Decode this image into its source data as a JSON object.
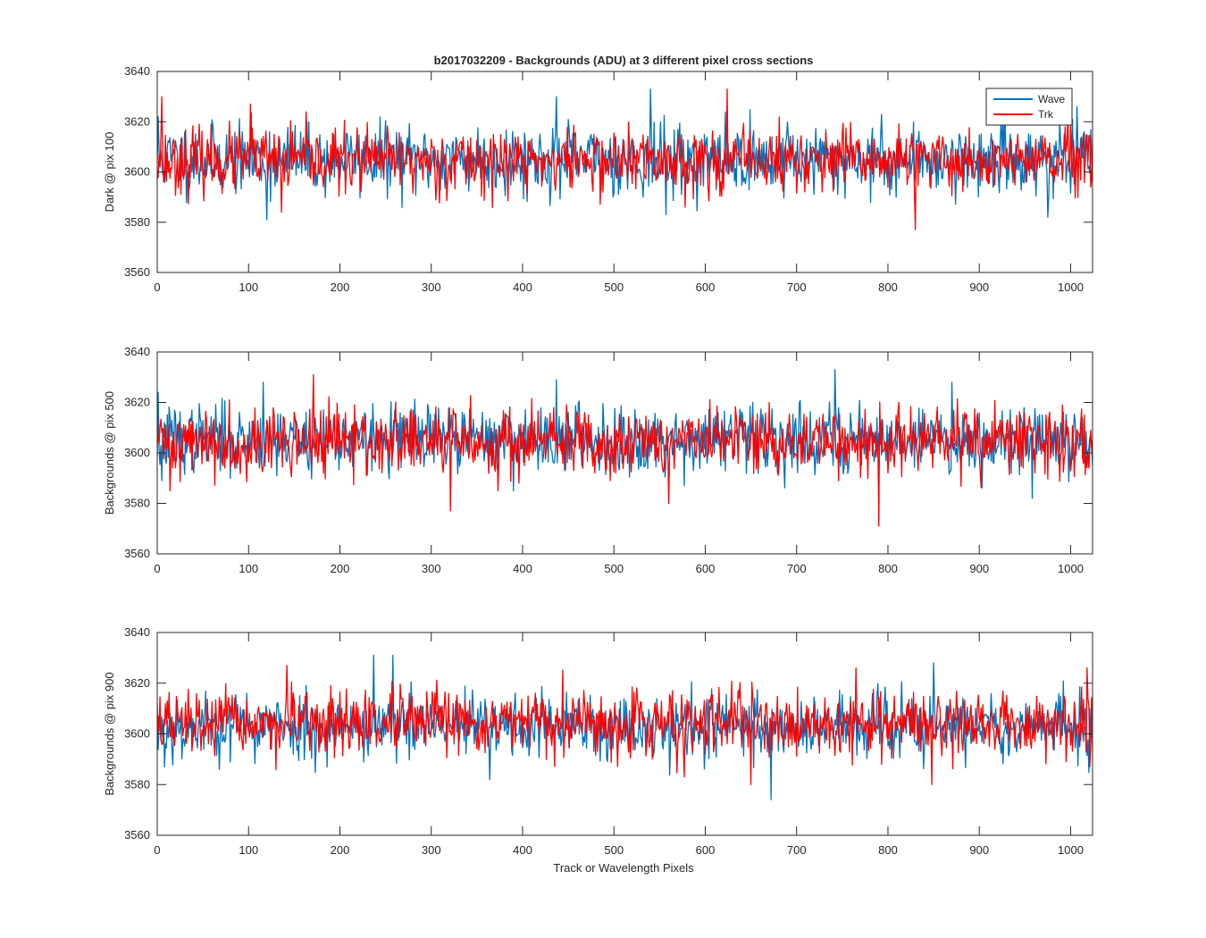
{
  "figure": {
    "title": "b2017032209 - Backgrounds (ADU) at 3 different pixel cross sections",
    "xlabel": "Track or Wavelength Pixels"
  },
  "colors": {
    "Wave": "#0072bd",
    "Trk": "#ff0000",
    "axis": "#262626"
  },
  "chart_data": [
    {
      "type": "line",
      "ylabel": "Dark @ pix 100",
      "xlim": [
        0,
        1024
      ],
      "ylim": [
        3560,
        3640
      ],
      "xticks": [
        0,
        100,
        200,
        300,
        400,
        500,
        600,
        700,
        800,
        900,
        1000
      ],
      "yticks": [
        3560,
        3580,
        3600,
        3620,
        3640
      ],
      "x": "integers 0..1024 (approx. one sample per pixel)",
      "legend": {
        "position": "top-right",
        "entries": [
          "Wave",
          "Trk"
        ]
      },
      "series": [
        {
          "name": "Wave",
          "color": "#0072bd",
          "mean": 3605,
          "std": 6.8,
          "seed": 11,
          "spikes": [
            [
              1,
              3622
            ],
            [
              120,
              3581
            ],
            [
              437,
              3630
            ],
            [
              540,
              3633
            ],
            [
              557,
              3583
            ],
            [
              690,
              3620
            ],
            [
              975,
              3582
            ]
          ]
        },
        {
          "name": "Trk",
          "color": "#ff0000",
          "mean": 3604.5,
          "std": 6.3,
          "seed": 23,
          "spikes": [
            [
              5,
              3630
            ],
            [
              7,
              3596
            ],
            [
              102,
              3627
            ],
            [
              136,
              3584
            ],
            [
              624,
              3633
            ],
            [
              830,
              3577
            ],
            [
              1022,
              3594
            ]
          ]
        }
      ]
    },
    {
      "type": "line",
      "ylabel": "Backgrounds @ pix 500",
      "xlim": [
        0,
        1024
      ],
      "ylim": [
        3560,
        3640
      ],
      "xticks": [
        0,
        100,
        200,
        300,
        400,
        500,
        600,
        700,
        800,
        900,
        1000
      ],
      "yticks": [
        3560,
        3580,
        3600,
        3620,
        3640
      ],
      "x": "integers 0..1024 (approx. one sample per pixel)",
      "series": [
        {
          "name": "Wave",
          "color": "#0072bd",
          "mean": 3605.5,
          "std": 6.6,
          "seed": 37,
          "spikes": [
            [
              1,
              3624
            ],
            [
              5,
              3589
            ],
            [
              116,
              3628
            ],
            [
              437,
              3629
            ],
            [
              742,
              3633
            ],
            [
              870,
              3628
            ],
            [
              958,
              3582
            ]
          ]
        },
        {
          "name": "Trk",
          "color": "#ff0000",
          "mean": 3604.5,
          "std": 6.8,
          "seed": 41,
          "spikes": [
            [
              14,
              3585
            ],
            [
              171,
              3631
            ],
            [
              321,
              3577
            ],
            [
              560,
              3580
            ],
            [
              790,
              3571
            ],
            [
              1020,
              3594
            ]
          ]
        }
      ]
    },
    {
      "type": "line",
      "ylabel": "Backgrounds @ pix 900",
      "xlim": [
        0,
        1024
      ],
      "ylim": [
        3560,
        3640
      ],
      "xticks": [
        0,
        100,
        200,
        300,
        400,
        500,
        600,
        700,
        800,
        900,
        1000
      ],
      "yticks": [
        3560,
        3580,
        3600,
        3620,
        3640
      ],
      "x": "integers 0..1024 (approx. one sample per pixel)",
      "series": [
        {
          "name": "Wave",
          "color": "#0072bd",
          "mean": 3603,
          "std": 6.4,
          "seed": 53,
          "spikes": [
            [
              8,
              3587
            ],
            [
              237,
              3631
            ],
            [
              258,
              3631
            ],
            [
              364,
              3582
            ],
            [
              672,
              3574
            ],
            [
              850,
              3628
            ],
            [
              1022,
              3596
            ]
          ]
        },
        {
          "name": "Trk",
          "color": "#ff0000",
          "mean": 3604,
          "std": 6.2,
          "seed": 67,
          "spikes": [
            [
              142,
              3627
            ],
            [
              650,
              3580
            ],
            [
              765,
              3626
            ],
            [
              848,
              3580
            ],
            [
              1018,
              3626
            ],
            [
              1021,
              3587
            ]
          ]
        }
      ]
    }
  ]
}
